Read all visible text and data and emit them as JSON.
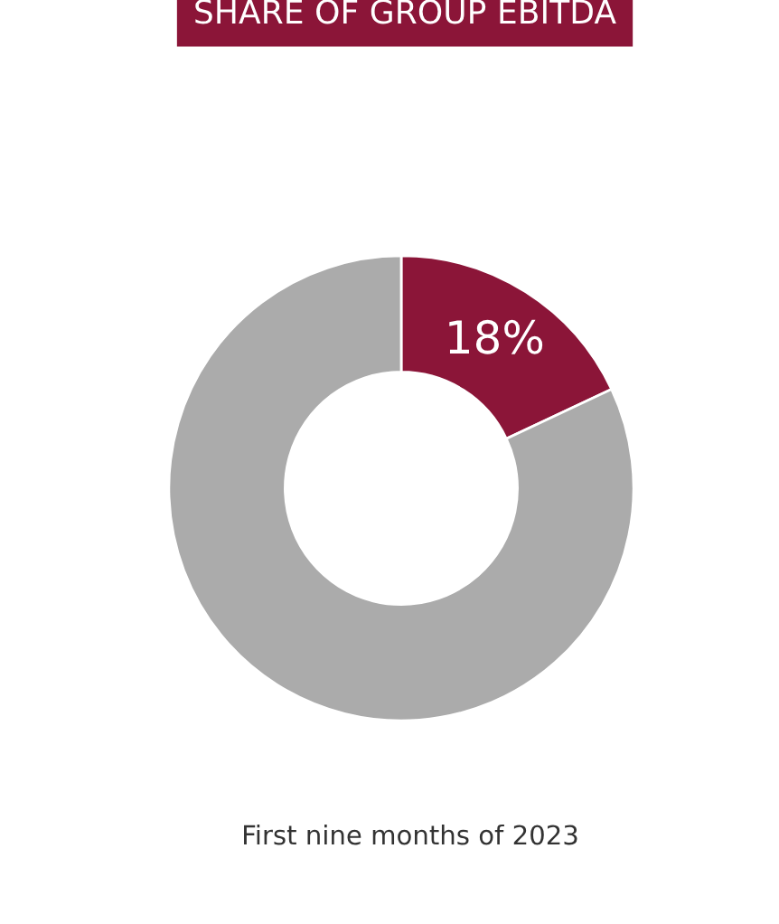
{
  "chart_data": {
    "type": "donut",
    "title": "SHARE OF GROUP EBITDA",
    "categories": [
      null,
      null
    ],
    "values": [
      18,
      82
    ],
    "colors": [
      "#8b1538",
      "#ababab"
    ],
    "value_labels": [
      "18%",
      null
    ],
    "annotations": [
      "First nine months of 2023"
    ],
    "legend": false
  }
}
